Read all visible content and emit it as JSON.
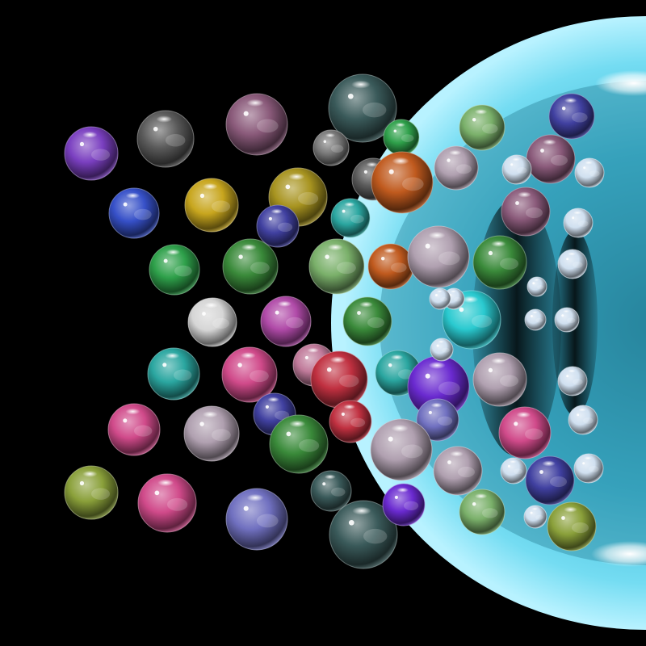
{
  "scene": {
    "background": "#000000",
    "glass_sphere_color": "#4fd2ee",
    "sphere_palette": [
      "#7a3fc0",
      "#5a5a5a",
      "#8a5a7a",
      "#3a5a5a",
      "#7a7a7a",
      "#c8a61e",
      "#3650c8",
      "#2ea04a",
      "#c05a1e",
      "#a89420",
      "#2aa6a0",
      "#b04aa8",
      "#d6d6d6",
      "#c03040",
      "#3a8a3a",
      "#2acad0",
      "#6a2ad0",
      "#d04a8a",
      "#b0a0b0",
      "#7ab06a",
      "#7070c0",
      "#c07a9a",
      "#4040a0",
      "#d0e0f0",
      "#8aa03a"
    ]
  }
}
